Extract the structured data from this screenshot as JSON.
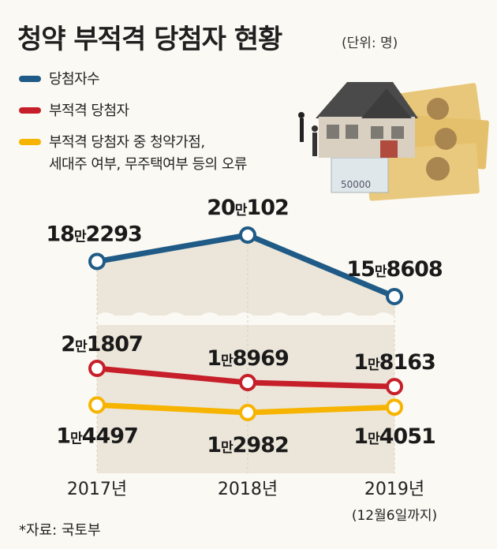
{
  "header": {
    "title": "청약 부적격 당첨자 현황",
    "unit": "(단위: 명)"
  },
  "legend": [
    {
      "label": "당첨자수",
      "color": "#1f5b86"
    },
    {
      "label": "부적격 당첨자",
      "color": "#c61f2a"
    },
    {
      "label": "부적격 당첨자 중 청약가점,",
      "label2": "세대주 여부, 무주택여부 등의 오류",
      "color": "#f6b400"
    }
  ],
  "chart_data": {
    "type": "line",
    "categories": [
      "2017년",
      "2018년",
      "2019년"
    ],
    "category_note": "(12월6일까지)",
    "axis_break": true,
    "series": [
      {
        "name": "당첨자수",
        "values": [
          182293,
          200102,
          158608
        ],
        "labels": [
          "18만2293",
          "20만102",
          "15만8608"
        ],
        "color": "#1f5b86"
      },
      {
        "name": "부적격 당첨자",
        "values": [
          21807,
          18969,
          18163
        ],
        "labels": [
          "2만1807",
          "1만8969",
          "1만8163"
        ],
        "color": "#c61f2a"
      },
      {
        "name": "부적격 당첨자 중 청약가점, 세대주 여부, 무주택여부 등의 오류",
        "values": [
          14497,
          12982,
          14051
        ],
        "labels": [
          "1만4497",
          "1만2982",
          "1만4051"
        ],
        "color": "#f6b400"
      }
    ]
  },
  "illustration": {
    "icon": "house-and-banknotes-illustration",
    "banknote_text": "50000"
  },
  "source": "*자료: 국토부"
}
